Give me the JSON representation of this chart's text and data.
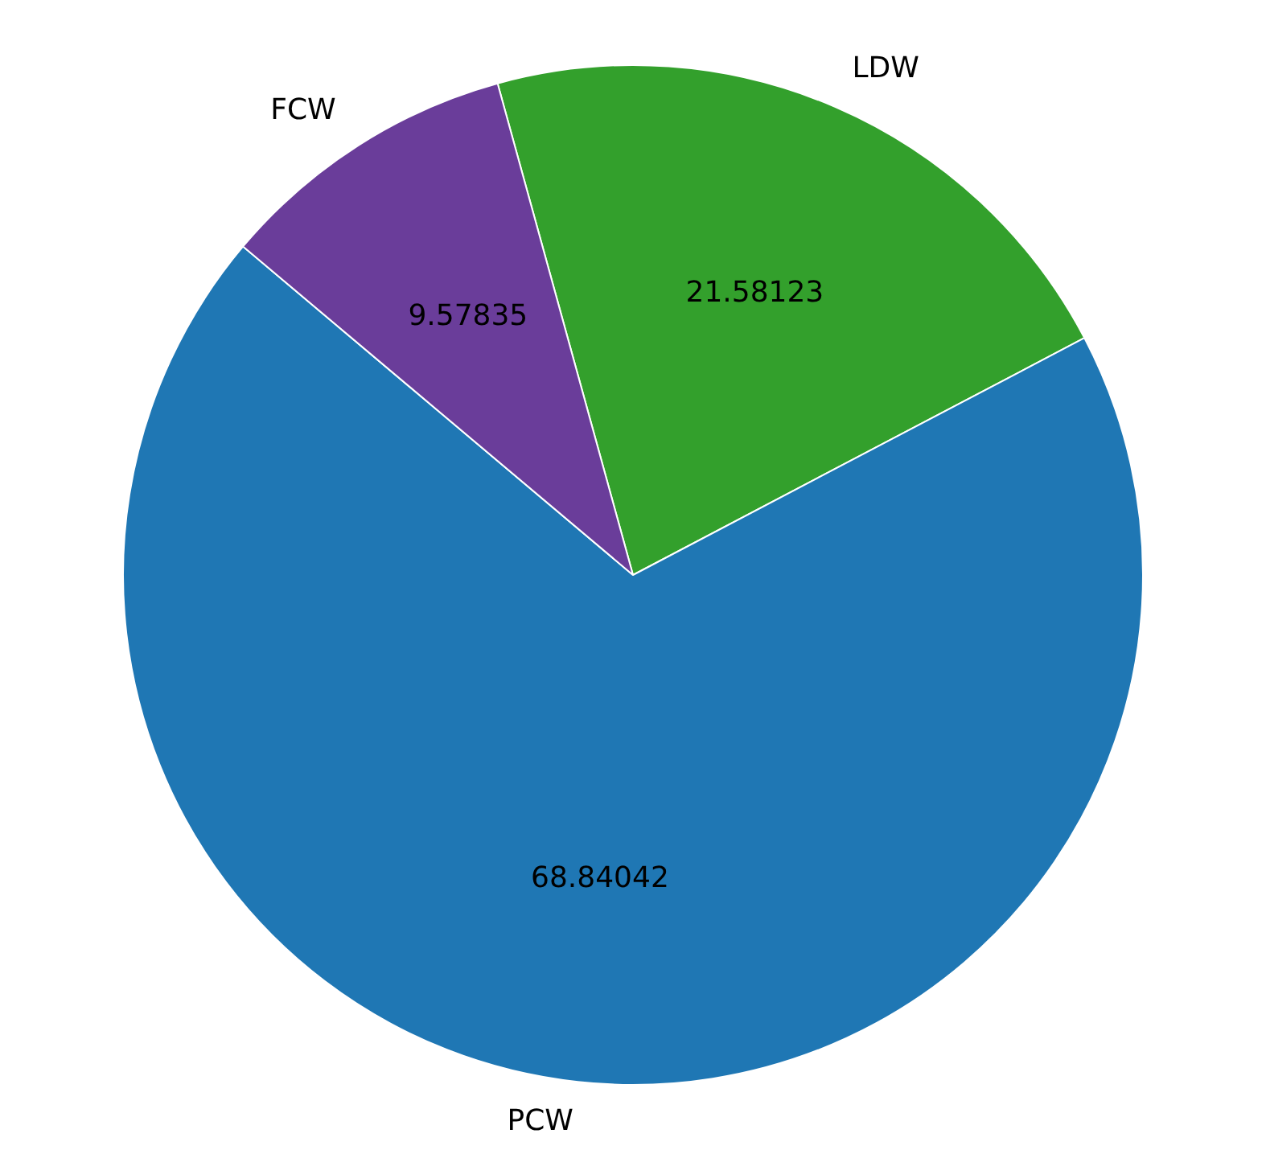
{
  "chart_data": {
    "type": "pie",
    "categories": [
      "LDW",
      "PCW",
      "FCW"
    ],
    "values": [
      21.58123,
      68.84042,
      9.57835
    ],
    "colors": [
      "#33a02c",
      "#1f77b4",
      "#6a3d9a"
    ],
    "data_labels": true,
    "legend": false
  }
}
